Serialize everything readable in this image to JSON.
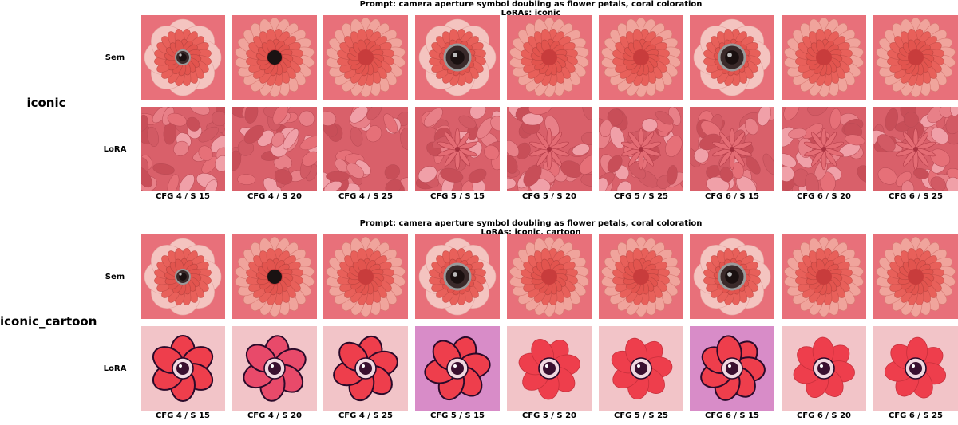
{
  "groups": [
    {
      "label": "iconic",
      "prompt": "Prompt: camera aperture symbol doubling as flower petals, coral coloration",
      "loras": "LoRAs: iconic",
      "rows": [
        {
          "label": "Sem",
          "style": "real"
        },
        {
          "label": "LoRA",
          "style": "petals"
        }
      ]
    },
    {
      "label": "iconic_cartoon",
      "prompt": "Prompt: camera aperture symbol doubling as flower petals, coral coloration",
      "loras": "LoRAs: iconic, cartoon",
      "rows": [
        {
          "label": "Sem",
          "style": "real"
        },
        {
          "label": "LoRA",
          "style": "cartoon"
        }
      ]
    }
  ],
  "columns": [
    "CFG 4 / S 15",
    "CFG 4 / S 20",
    "CFG 4 / S 25",
    "CFG 5 / S 15",
    "CFG 5 / S 20",
    "CFG 5 / S 25",
    "CFG 6 / S 15",
    "CFG 6 / S 20",
    "CFG 6 / S 25"
  ],
  "colors": {
    "coral_bg": "#e8707a",
    "petal_light": "#f4c4c0",
    "petal_mid": "#e8605a",
    "petal_dark": "#c83c3c",
    "cartoon_bg": "#f2c4c8",
    "cartoon_alt_bg": "#d88cc8",
    "cartoon_outline": "#2a0a2a"
  }
}
